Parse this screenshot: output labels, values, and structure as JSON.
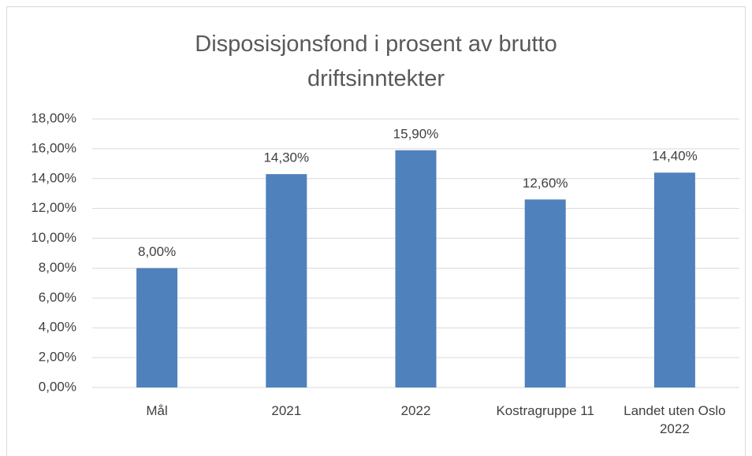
{
  "chart_data": {
    "type": "bar",
    "title": "Disposisjonsfond i prosent av brutto driftsinntekter",
    "categories": [
      "Mål",
      "2021",
      "2022",
      "Kostragruppe 11",
      "Landet uten Oslo 2022"
    ],
    "values": [
      8.0,
      14.3,
      15.9,
      12.6,
      14.4
    ],
    "value_labels": [
      "8,00%",
      "14,30%",
      "15,90%",
      "12,60%",
      "14,40%"
    ],
    "color": "#4f81bd",
    "ylim": [
      0,
      18
    ],
    "yticks": [
      {
        "value": 0,
        "label": "0,00%"
      },
      {
        "value": 2,
        "label": "2,00%"
      },
      {
        "value": 4,
        "label": "4,00%"
      },
      {
        "value": 6,
        "label": "6,00%"
      },
      {
        "value": 8,
        "label": "8,00%"
      },
      {
        "value": 10,
        "label": "10,00%"
      },
      {
        "value": 12,
        "label": "12,00%"
      },
      {
        "value": 14,
        "label": "14,00%"
      },
      {
        "value": 16,
        "label": "16,00%"
      },
      {
        "value": 18,
        "label": "18,00%"
      }
    ],
    "grid": true
  }
}
